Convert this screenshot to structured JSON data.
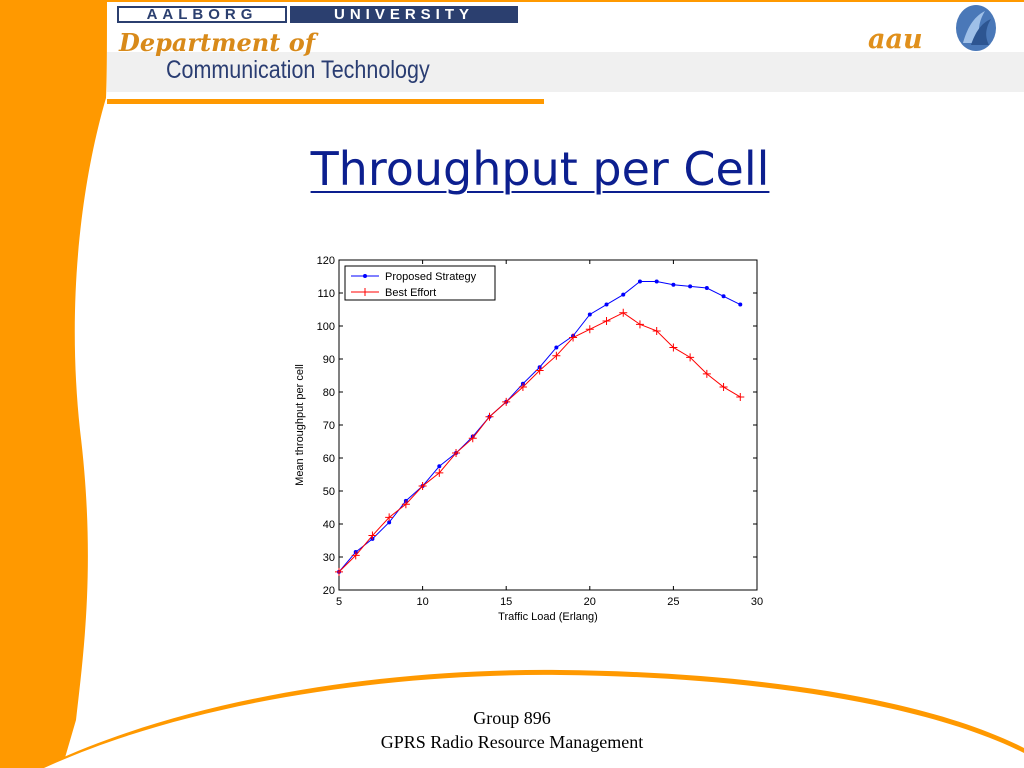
{
  "header": {
    "banner_left": "AALBORG",
    "banner_right": "UNIVERSITY",
    "department_line1": "Department of",
    "department_line2": "Communication Technology",
    "logo_text": "aau",
    "logo_emblem_icon": "aau-emblem-icon"
  },
  "slide": {
    "title": "Throughput per Cell"
  },
  "footer": {
    "line1": "Group 896",
    "line2": "GPRS Radio Resource Management"
  },
  "colors": {
    "accent_orange": "#ff9900",
    "title_blue": "#0c1f8f",
    "series_blue": "#0000ff",
    "series_red": "#ff0000"
  },
  "chart_data": {
    "type": "line",
    "title": "",
    "xlabel": "Traffic Load (Erlang)",
    "ylabel": "Mean throughput per cell",
    "xlim": [
      5,
      30
    ],
    "ylim": [
      20,
      120
    ],
    "xticks": [
      5,
      10,
      15,
      20,
      25,
      30
    ],
    "yticks": [
      20,
      30,
      40,
      50,
      60,
      70,
      80,
      90,
      100,
      110,
      120
    ],
    "grid": false,
    "legend_position": "top-left",
    "x": [
      5,
      6,
      7,
      8,
      9,
      10,
      11,
      12,
      13,
      14,
      15,
      16,
      17,
      18,
      19,
      20,
      21,
      22,
      23,
      24,
      25,
      26,
      27,
      28,
      29
    ],
    "series": [
      {
        "name": "Proposed Strategy",
        "color": "#0000ff",
        "marker": "dot",
        "values": [
          25.5,
          31.5,
          35.5,
          40.5,
          47,
          51.5,
          57.5,
          61.5,
          66.5,
          72.5,
          77,
          82.5,
          87.5,
          93.5,
          97,
          103.5,
          106.5,
          109.5,
          113.5,
          113.5,
          112.5,
          112,
          111.5,
          109,
          106.5
        ]
      },
      {
        "name": "Best Effort",
        "color": "#ff0000",
        "marker": "plus",
        "values": [
          25.5,
          30.5,
          36.5,
          42,
          46,
          51.5,
          55.5,
          61.5,
          66,
          72.5,
          77,
          81.5,
          86.5,
          91,
          96.5,
          99,
          101.5,
          104,
          100.5,
          98.5,
          93.5,
          90.5,
          85.5,
          81.5,
          78.5
        ]
      }
    ]
  }
}
